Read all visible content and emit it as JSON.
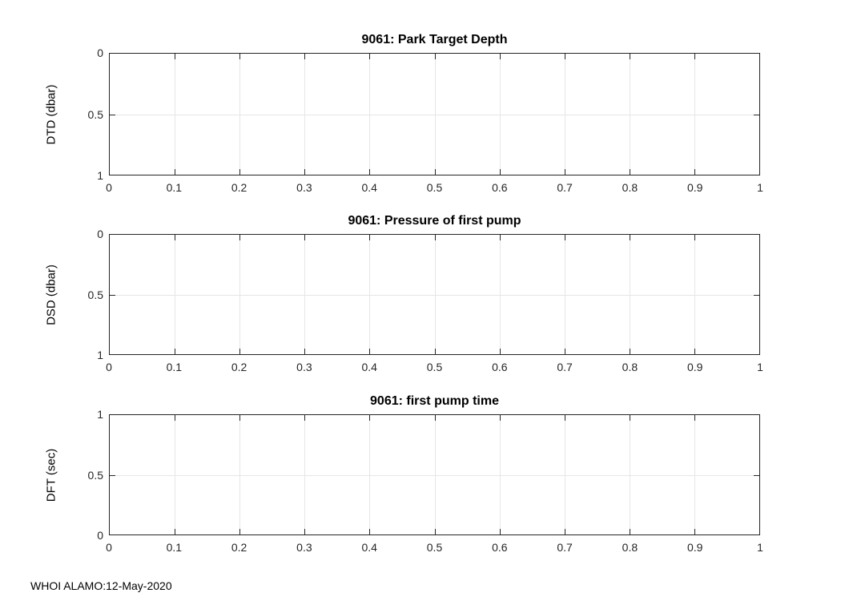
{
  "figure": {
    "footer_text": "WHOI ALAMO:12-May-2020"
  },
  "colors": {
    "axis": "#262626",
    "grid": "#e6e6e6",
    "text": "#000000",
    "background": "#ffffff"
  },
  "chart_data": [
    {
      "type": "line",
      "title": "9061: Park Target Depth",
      "xlabel": "",
      "ylabel": "DTD (dbar)",
      "xlim": [
        0,
        1
      ],
      "ylim": [
        0,
        1
      ],
      "y_reversed": true,
      "grid": true,
      "legend": null,
      "xticks": [
        0,
        0.1,
        0.2,
        0.3,
        0.4,
        0.5,
        0.6,
        0.7,
        0.8,
        0.9,
        1
      ],
      "xtick_labels": [
        "0",
        "0.1",
        "0.2",
        "0.3",
        "0.4",
        "0.5",
        "0.6",
        "0.7",
        "0.8",
        "0.9",
        "1"
      ],
      "yticks": [
        0,
        0.5,
        1
      ],
      "ytick_labels": [
        "0",
        "0.5",
        "1"
      ],
      "series": []
    },
    {
      "type": "line",
      "title": "9061: Pressure of first pump",
      "xlabel": "",
      "ylabel": "DSD (dbar)",
      "xlim": [
        0,
        1
      ],
      "ylim": [
        0,
        1
      ],
      "y_reversed": true,
      "grid": true,
      "legend": null,
      "xticks": [
        0,
        0.1,
        0.2,
        0.3,
        0.4,
        0.5,
        0.6,
        0.7,
        0.8,
        0.9,
        1
      ],
      "xtick_labels": [
        "0",
        "0.1",
        "0.2",
        "0.3",
        "0.4",
        "0.5",
        "0.6",
        "0.7",
        "0.8",
        "0.9",
        "1"
      ],
      "yticks": [
        0,
        0.5,
        1
      ],
      "ytick_labels": [
        "0",
        "0.5",
        "1"
      ],
      "series": []
    },
    {
      "type": "line",
      "title": "9061: first pump time",
      "xlabel": "",
      "ylabel": "DFT (sec)",
      "xlim": [
        0,
        1
      ],
      "ylim": [
        0,
        1
      ],
      "y_reversed": false,
      "grid": true,
      "legend": null,
      "xticks": [
        0,
        0.1,
        0.2,
        0.3,
        0.4,
        0.5,
        0.6,
        0.7,
        0.8,
        0.9,
        1
      ],
      "xtick_labels": [
        "0",
        "0.1",
        "0.2",
        "0.3",
        "0.4",
        "0.5",
        "0.6",
        "0.7",
        "0.8",
        "0.9",
        "1"
      ],
      "yticks": [
        0,
        0.5,
        1
      ],
      "ytick_labels": [
        "0",
        "0.5",
        "1"
      ],
      "series": []
    }
  ]
}
